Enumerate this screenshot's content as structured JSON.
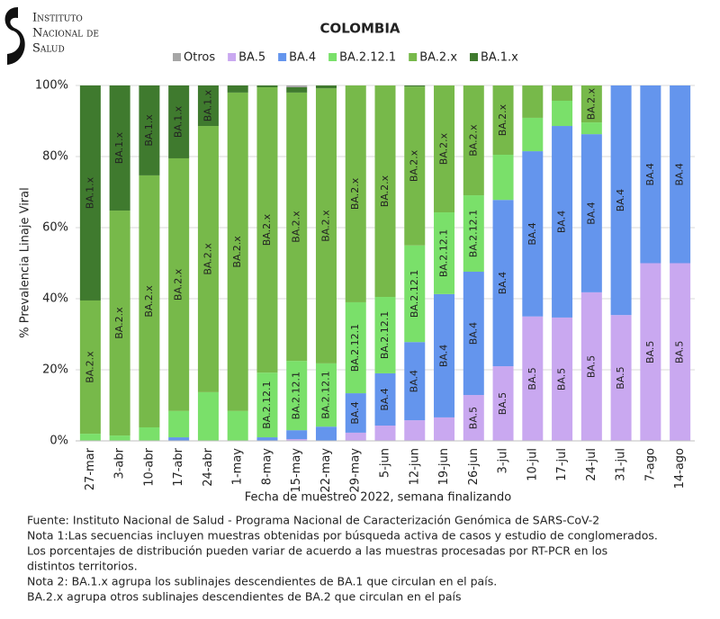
{
  "chart_data": {
    "type": "stacked_bar",
    "logo": [
      "Instituto",
      "Nacional de",
      "Salud"
    ],
    "title": "COLOMBIA",
    "y_label": "% Prevalencia Linaje Viral",
    "x_label": "Fecha de muestreo 2022, semana finalizando",
    "categories": [
      "27-mar",
      "3-abr",
      "10-abr",
      "17-abr",
      "24-abr",
      "1-may",
      "8-may",
      "15-may",
      "22-may",
      "29-may",
      "5-jun",
      "12-jun",
      "19-jun",
      "26-jun",
      "3-jul",
      "10-jul",
      "17-jul",
      "24-jul",
      "31-jul",
      "7-ago",
      "14-ago"
    ],
    "series": [
      {
        "name": "Otros",
        "color": "#a6a6a6",
        "values": [
          0,
          0,
          0,
          0,
          0,
          0,
          0,
          0.5,
          0,
          0,
          0,
          0,
          0,
          0,
          0,
          0,
          0,
          0,
          0,
          0,
          0
        ]
      },
      {
        "name": "BA.5",
        "color": "#c9a8f0",
        "values": [
          0,
          0,
          0,
          0,
          0,
          0,
          0,
          0.5,
          0,
          2.3,
          4.3,
          5.8,
          6.6,
          12.9,
          21,
          35,
          34.7,
          41.8,
          35.4,
          50,
          50
        ]
      },
      {
        "name": "BA.4",
        "color": "#6495ed",
        "values": [
          0,
          0,
          0,
          1,
          0,
          0,
          1,
          2.5,
          4,
          11.1,
          14.7,
          22,
          34.7,
          34.7,
          46.8,
          46.5,
          53.9,
          44.5,
          64.6,
          50,
          50
        ]
      },
      {
        "name": "BA.2.12.1",
        "color": "#7ae06a",
        "values": [
          2,
          1.5,
          3.8,
          7.4,
          13.7,
          8.4,
          18.2,
          19.5,
          17.8,
          25.6,
          21.5,
          27.2,
          23,
          21.5,
          12.7,
          9.4,
          7.1,
          3.3,
          0,
          0,
          0
        ]
      },
      {
        "name": "BA.2.x",
        "color": "#77b94a",
        "values": [
          37.5,
          63.3,
          70.9,
          71.1,
          74.9,
          89.6,
          80.3,
          75.5,
          77.4,
          61,
          59.5,
          44.7,
          35.7,
          30.9,
          19.5,
          9.1,
          4.3,
          10.4,
          0,
          0,
          0
        ]
      },
      {
        "name": "BA.1.x",
        "color": "#3f7a2e",
        "values": [
          60.5,
          35.2,
          25.3,
          20.5,
          11.4,
          2,
          0.5,
          1.5,
          0.8,
          0,
          0,
          0.3,
          0,
          0,
          0,
          0,
          0,
          0,
          0,
          0,
          0
        ]
      }
    ],
    "ylim": [
      0,
      100
    ],
    "yticks": [
      {
        "value": 0,
        "label": "0%"
      },
      {
        "value": 20,
        "label": "20%"
      },
      {
        "value": 40,
        "label": "40%"
      },
      {
        "value": 60,
        "label": "60%"
      },
      {
        "value": 80,
        "label": "80%"
      },
      {
        "value": 100,
        "label": "100%"
      }
    ],
    "grid": true,
    "notes": [
      "Fuente: Instituto Nacional de Salud - Programa Nacional de Caracterización Genómica de SARS-CoV-2",
      "Nota 1:Las secuencias incluyen muestras obtenidas por búsqueda activa de casos y estudio de conglomerados.",
      "Los porcentajes de distribución pueden variar de acuerdo a las muestras procesadas por RT-PCR en los",
      "distintos territorios.",
      "Nota 2: BA.1.x agrupa los sublinajes descendientes de BA.1 que circulan en el país.",
      "BA.2.x agrupa otros sublinajes descendientes de BA.2 que circulan en el país"
    ]
  }
}
